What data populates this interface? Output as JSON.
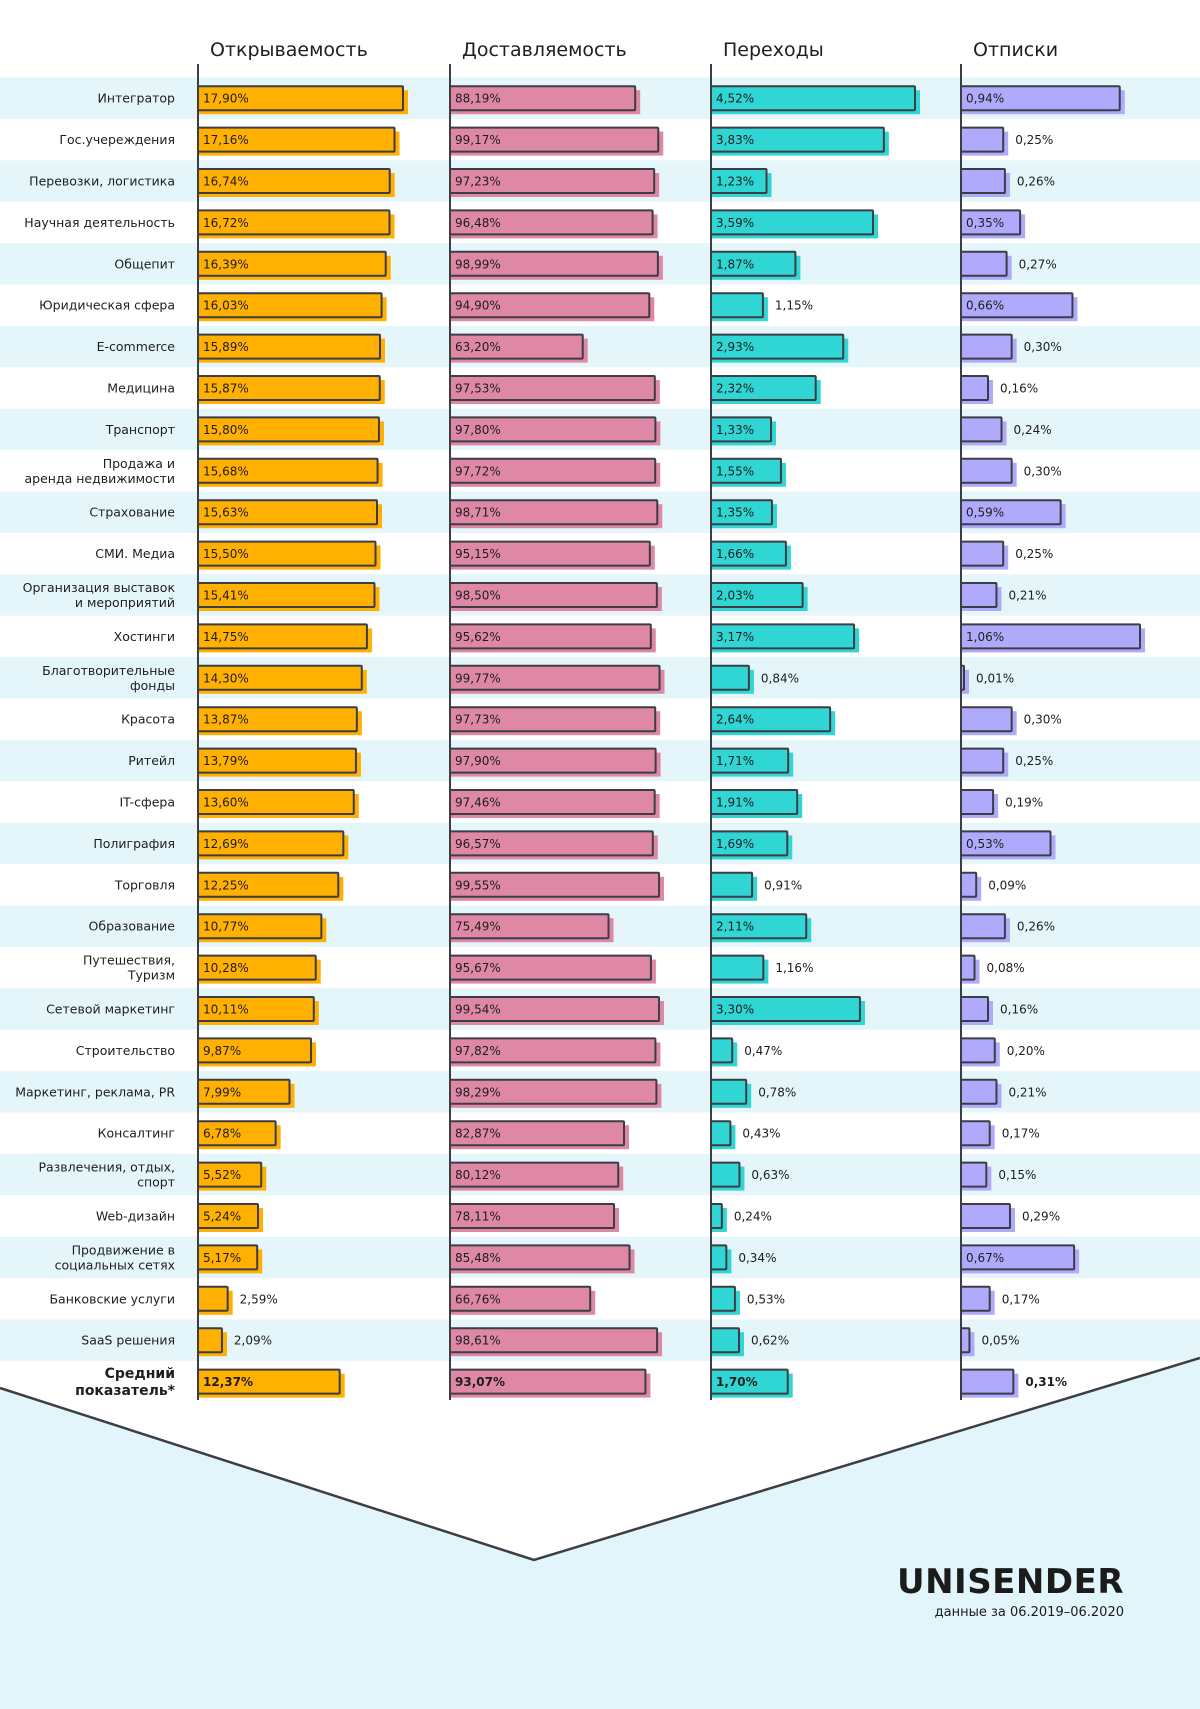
{
  "colors": {
    "stripe": "#e5f6fb",
    "bottom_bg": "#e1f5fb",
    "outline": "#3d3d45",
    "open": "#ffb000",
    "deliver": "#df88a6",
    "click": "#2fd6d3",
    "unsub": "#b0aafd"
  },
  "brand": {
    "name": "UNISENDER",
    "period": "данные за 06.2019–06.2020"
  },
  "chart_data": {
    "type": "bar",
    "orientation": "horizontal",
    "categories": [
      "Интегратор",
      "Гос.учереждения",
      "Перевозки, логистика",
      "Научная деятельность",
      "Общепит",
      "Юридическая сфера",
      "E-commerce",
      "Медицина",
      "Транспорт",
      "Продажа и\nаренда недвижимости",
      "Страхование",
      "СМИ. Медиа",
      "Организация выставок\nи мероприятий",
      "Хостинги",
      "Благотворительные\nфонды",
      "Красота",
      "Ритейл",
      "IT-сфера",
      "Полиграфия",
      "Торговля",
      "Образование",
      "Путешествия,\nТуризм",
      "Сетевой маркетинг",
      "Строительство",
      "Маркетинг, реклама, PR",
      "Консалтинг",
      "Развлечения, отдых,\nспорт",
      "Web-дизайн",
      "Продвижение в\nсоциальных сетях",
      "Банковские услуги",
      "SaaS решения",
      "Средний\nпоказатель*"
    ],
    "highlight_last": true,
    "series": [
      {
        "name": "Открываемость",
        "color_key": "open",
        "max": 17.9,
        "values": [
          17.9,
          17.16,
          16.74,
          16.72,
          16.39,
          16.03,
          15.89,
          15.87,
          15.8,
          15.68,
          15.63,
          15.5,
          15.41,
          14.75,
          14.3,
          13.87,
          13.79,
          13.6,
          12.69,
          12.25,
          10.77,
          10.28,
          10.11,
          9.87,
          7.99,
          6.78,
          5.52,
          5.24,
          5.17,
          2.59,
          2.09,
          12.37
        ],
        "labels": [
          "17,90%",
          "17,16%",
          "16,74%",
          "16,72%",
          "16,39%",
          "16,03%",
          "15,89%",
          "15,87%",
          "15,80%",
          "15,68%",
          "15,63%",
          "15,50%",
          "15,41%",
          "14,75%",
          "14,30%",
          "13,87%",
          "13,79%",
          "13,60%",
          "12,69%",
          "12,25%",
          "10,77%",
          "10,28%",
          "10,11%",
          "9,87%",
          "7,99%",
          "6,78%",
          "5,52%",
          "5,24%",
          "5,17%",
          "2,59%",
          "2,09%",
          "12,37%"
        ]
      },
      {
        "name": "Доставляемость",
        "color_key": "deliver",
        "max": 100,
        "values": [
          88.19,
          99.17,
          97.23,
          96.48,
          98.99,
          94.9,
          63.2,
          97.53,
          97.8,
          97.72,
          98.71,
          95.15,
          98.5,
          95.62,
          99.77,
          97.73,
          97.9,
          97.46,
          96.57,
          99.55,
          75.49,
          95.67,
          99.54,
          97.82,
          98.29,
          82.87,
          80.12,
          78.11,
          85.48,
          66.76,
          98.61,
          93.07
        ],
        "labels": [
          "88,19%",
          "99,17%",
          "97,23%",
          "96,48%",
          "98,99%",
          "94,90%",
          "63,20%",
          "97,53%",
          "97,80%",
          "97,72%",
          "98,71%",
          "95,15%",
          "98,50%",
          "95,62%",
          "99,77%",
          "97,73%",
          "97,90%",
          "97,46%",
          "96,57%",
          "99,55%",
          "75,49%",
          "95,67%",
          "99,54%",
          "97,82%",
          "98,29%",
          "82,87%",
          "80,12%",
          "78,11%",
          "85,48%",
          "66,76%",
          "98,61%",
          "93,07%"
        ]
      },
      {
        "name": "Переходы",
        "color_key": "click",
        "max": 4.52,
        "values": [
          4.52,
          3.83,
          1.23,
          3.59,
          1.87,
          1.15,
          2.93,
          2.32,
          1.33,
          1.55,
          1.35,
          1.66,
          2.03,
          3.17,
          0.84,
          2.64,
          1.71,
          1.91,
          1.69,
          0.91,
          2.11,
          1.16,
          3.3,
          0.47,
          0.78,
          0.43,
          0.63,
          0.24,
          0.34,
          0.53,
          0.62,
          1.7
        ],
        "labels": [
          "4,52%",
          "3,83%",
          "1,23%",
          "3,59%",
          "1,87%",
          "1,15%",
          "2,93%",
          "2,32%",
          "1,33%",
          "1,55%",
          "1,35%",
          "1,66%",
          "2,03%",
          "3,17%",
          "0,84%",
          "2,64%",
          "1,71%",
          "1,91%",
          "1,69%",
          "0,91%",
          "2,11%",
          "1,16%",
          "3,30%",
          "0,47%",
          "0,78%",
          "0,43%",
          "0,63%",
          "0,24%",
          "0,34%",
          "0,53%",
          "0,62%",
          "1,70%"
        ]
      },
      {
        "name": "Отписки",
        "color_key": "unsub",
        "max": 1.06,
        "values": [
          0.94,
          0.25,
          0.26,
          0.35,
          0.27,
          0.66,
          0.3,
          0.16,
          0.24,
          0.3,
          0.59,
          0.25,
          0.21,
          1.06,
          0.01,
          0.3,
          0.25,
          0.19,
          0.53,
          0.09,
          0.26,
          0.08,
          0.16,
          0.2,
          0.21,
          0.17,
          0.15,
          0.29,
          0.67,
          0.17,
          0.05,
          0.31
        ],
        "labels": [
          "0,94%",
          "0,25%",
          "0,26%",
          "0,35%",
          "0,27%",
          "0,66%",
          "0,30%",
          "0,16%",
          "0,24%",
          "0,30%",
          "0,59%",
          "0,25%",
          "0,21%",
          "1,06%",
          "0,01%",
          "0,30%",
          "0,25%",
          "0,19%",
          "0,53%",
          "0,09%",
          "0,26%",
          "0,08%",
          "0,16%",
          "0,20%",
          "0,21%",
          "0,17%",
          "0,15%",
          "0,29%",
          "0,67%",
          "0,17%",
          "0,05%",
          "0,31%"
        ]
      }
    ]
  }
}
